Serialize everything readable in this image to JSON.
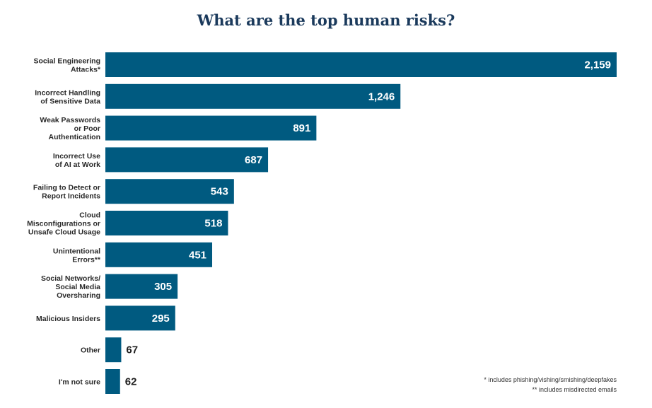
{
  "chart_data": {
    "type": "bar",
    "orientation": "horizontal",
    "title": "What are the top human risks?",
    "categories": [
      [
        "Social Engineering",
        "Attacks*"
      ],
      [
        "Incorrect Handling",
        "of Sensitive Data"
      ],
      [
        "Weak Passwords",
        "or Poor",
        "Authentication"
      ],
      [
        "Incorrect Use",
        "of AI at Work"
      ],
      [
        "Failing to Detect or",
        "Report Incidents"
      ],
      [
        "Cloud",
        "Misconfigurations or",
        "Unsafe Cloud Usage"
      ],
      [
        "Unintentional",
        "Errors**"
      ],
      [
        "Social Networks/",
        "Social Media",
        "Oversharing"
      ],
      [
        "Malicious Insiders"
      ],
      [
        "Other"
      ],
      [
        "I'm not sure"
      ]
    ],
    "values": [
      2159,
      1246,
      891,
      687,
      543,
      518,
      451,
      305,
      295,
      67,
      62
    ],
    "value_labels": [
      "2,159",
      "1,246",
      "891",
      "687",
      "543",
      "518",
      "451",
      "305",
      "295",
      "67",
      "62"
    ],
    "xlim": [
      0,
      2159
    ],
    "bar_color": "#005a80",
    "grid": false
  },
  "footnotes": {
    "note1": "* includes phishing/vishing/smishing/deepfakes",
    "note2": "** includes misdirected emails"
  }
}
